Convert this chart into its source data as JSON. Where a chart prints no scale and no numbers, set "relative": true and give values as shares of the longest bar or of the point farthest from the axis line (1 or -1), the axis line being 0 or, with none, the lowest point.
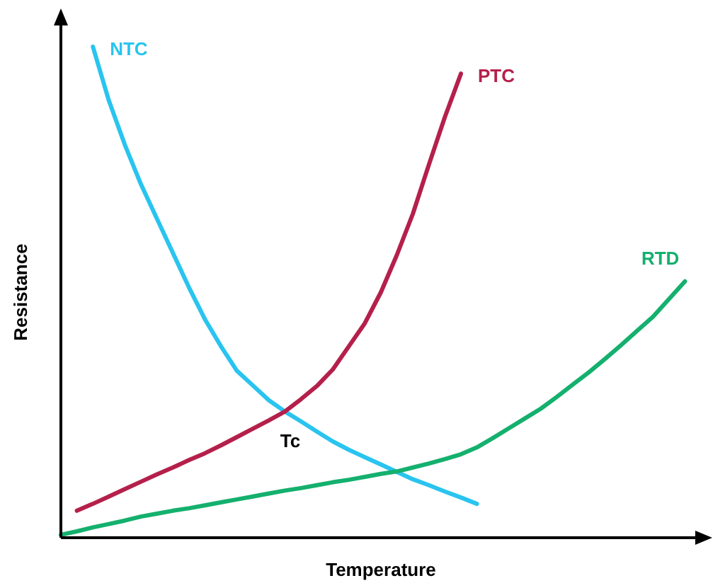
{
  "chart_data": {
    "type": "line",
    "relative": true,
    "xlabel": "Temperature",
    "ylabel": "Resistance",
    "legend": false,
    "marker": "none",
    "line_style": "solid",
    "annotations": [
      "Tc"
    ],
    "categories": [
      null,
      null,
      null,
      null,
      null,
      null,
      null,
      null,
      null,
      null,
      null,
      null,
      null,
      null,
      null,
      null,
      null,
      null,
      null,
      null,
      null,
      null,
      null,
      null,
      null,
      null,
      null,
      null,
      null,
      null,
      null,
      null,
      null,
      null,
      null,
      null,
      null,
      null,
      null,
      null,
      null
    ],
    "series": [
      {
        "name": "NTC",
        "color": "#29c4ef",
        "values": [
          null,
          null,
          1,
          0.89,
          0.8,
          0.72,
          0.65,
          0.58,
          0.51,
          0.445,
          0.39,
          0.34,
          0.31,
          0.28,
          0.257,
          0.237,
          0.216,
          0.196,
          0.179,
          0.164,
          0.149,
          0.134,
          0.119,
          0.107,
          0.094,
          0.082,
          0.069,
          null,
          null,
          null,
          null,
          null,
          null,
          null,
          null,
          null,
          null,
          null,
          null,
          null,
          null
        ]
      },
      {
        "name": "PTC",
        "color": "#b5204b",
        "values": [
          null,
          0.055,
          0.069,
          0.084,
          0.099,
          0.114,
          0.129,
          0.143,
          0.158,
          0.172,
          0.188,
          0.205,
          0.222,
          0.239,
          0.257,
          0.282,
          0.309,
          0.343,
          0.39,
          0.437,
          0.5,
          0.576,
          0.66,
          0.76,
          0.857,
          0.945,
          null,
          null,
          null,
          null,
          null,
          null,
          null,
          null,
          null,
          null,
          null,
          null,
          null,
          null,
          null
        ]
      },
      {
        "name": "RTD",
        "color": "#14b06e",
        "values": [
          0.006,
          0.013,
          0.021,
          0.028,
          0.035,
          0.043,
          0.049,
          0.055,
          0.06,
          0.066,
          0.072,
          0.078,
          0.084,
          0.09,
          0.096,
          0.101,
          0.107,
          0.113,
          0.118,
          0.124,
          0.13,
          0.135,
          0.143,
          0.151,
          0.16,
          0.17,
          0.184,
          0.203,
          0.223,
          0.243,
          0.263,
          0.287,
          0.312,
          0.337,
          0.364,
          0.392,
          0.421,
          0.45,
          0.486,
          0.522,
          null
        ]
      }
    ]
  }
}
